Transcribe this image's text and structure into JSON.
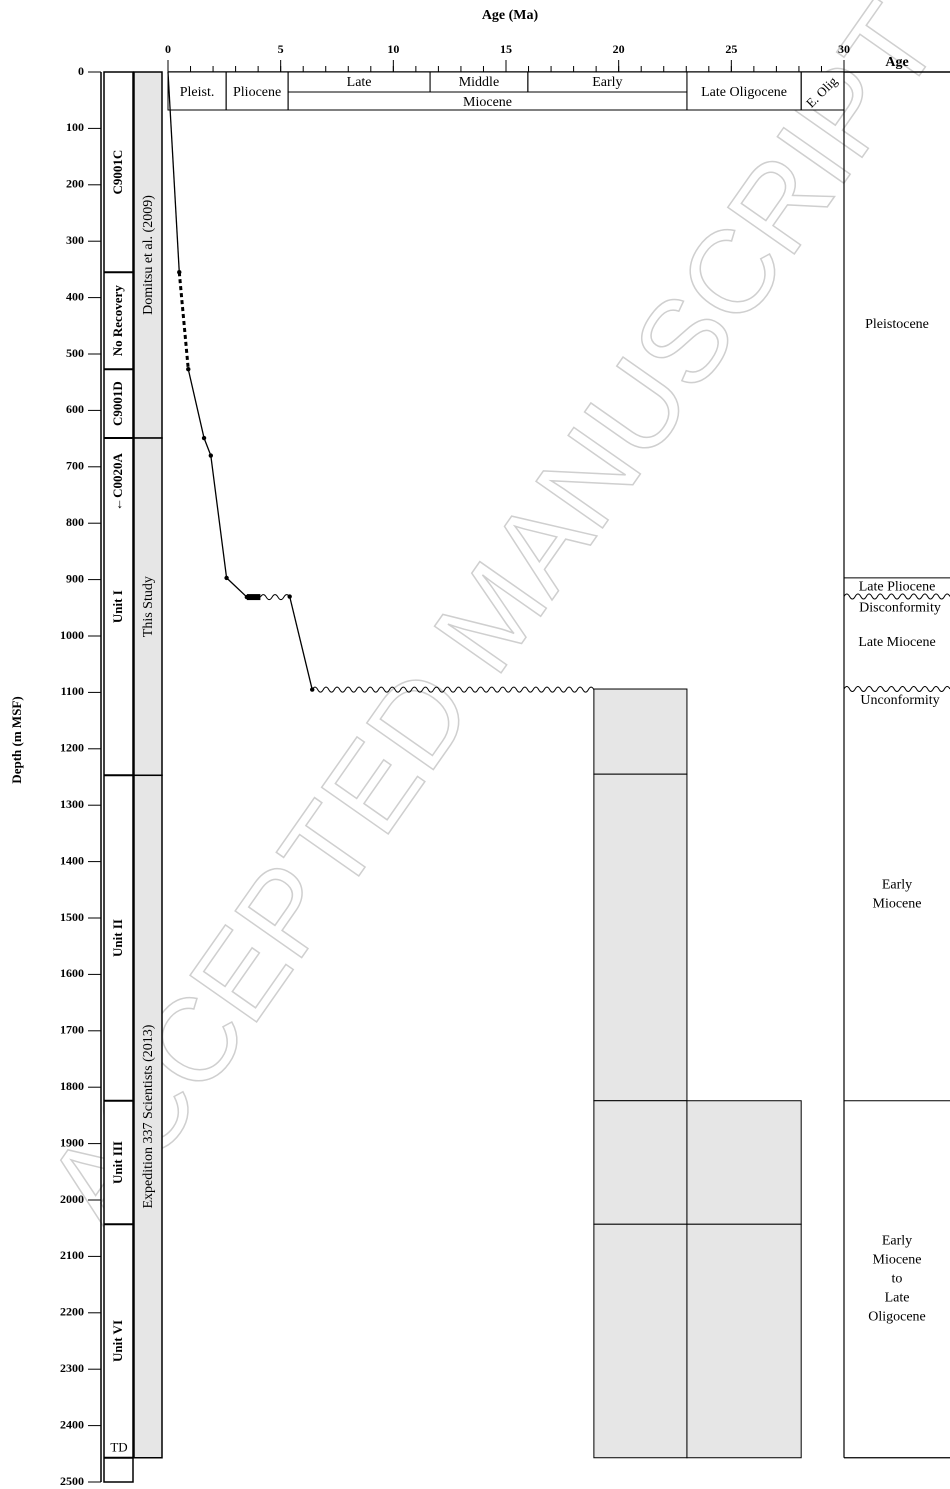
{
  "chart_data": {
    "type": "age-depth",
    "x_label": "Age (Ma)",
    "y_label": "Depth (m MSF)",
    "watermark": "ACCEPTED MANUSCRIPT",
    "xlim": [
      0,
      30
    ],
    "xticks": [
      0,
      5,
      10,
      15,
      20,
      25,
      30
    ],
    "x_minor_step": 1,
    "ylim": [
      0,
      2500
    ],
    "yticks": [
      0,
      100,
      200,
      300,
      400,
      500,
      600,
      700,
      800,
      900,
      1000,
      1100,
      1200,
      1300,
      1400,
      1500,
      1600,
      1700,
      1800,
      1900,
      2000,
      2100,
      2200,
      2300,
      2400,
      2500
    ],
    "series": [
      {
        "style": "solid",
        "x": [
          0,
          0.5
        ],
        "y": [
          0,
          355
        ]
      },
      {
        "style": "dashed",
        "x": [
          0.5,
          0.9
        ],
        "y": [
          355,
          527
        ]
      },
      {
        "style": "solid",
        "x": [
          0.9,
          1.6,
          1.9,
          2.6,
          3.5
        ],
        "y": [
          527,
          649,
          680,
          897,
          931
        ]
      },
      {
        "style": "thick",
        "x": [
          3.5,
          4.1
        ],
        "y": [
          931,
          931
        ]
      },
      {
        "style": "wavy",
        "x": [
          4.1,
          5.4
        ],
        "y": [
          931,
          930
        ]
      },
      {
        "style": "solid",
        "x": [
          5.4,
          6.4
        ],
        "y": [
          930,
          1095
        ]
      },
      {
        "style": "wavy",
        "x": [
          6.4,
          18.9
        ],
        "y": [
          1095,
          1095
        ]
      }
    ],
    "ranges": [
      {
        "x": [
          18.9,
          23.03
        ],
        "y": [
          1094,
          1245
        ]
      },
      {
        "x": [
          18.9,
          23.03
        ],
        "y": [
          1245,
          1824
        ]
      },
      {
        "x": [
          18.9,
          23.03
        ],
        "y": [
          1824,
          2043
        ]
      },
      {
        "x": [
          18.9,
          23.03
        ],
        "y": [
          2043,
          2457
        ]
      },
      {
        "x": [
          23.03,
          28.1
        ],
        "y": [
          1824,
          2043
        ]
      },
      {
        "x": [
          23.03,
          28.1
        ],
        "y": [
          2043,
          2457
        ]
      }
    ],
    "chronostratigraphy": {
      "epochs": [
        {
          "name": "Pleist.",
          "start": 0,
          "end": 2.58
        },
        {
          "name": "Pliocene",
          "start": 2.58,
          "end": 5.33
        },
        {
          "name": "Miocene",
          "start": 5.33,
          "end": 23.03
        },
        {
          "name": "Late Oligocene",
          "start": 23.03,
          "end": 28.1
        },
        {
          "name": "E. Olig",
          "start": 28.1,
          "end": 30
        }
      ],
      "subepochs": [
        {
          "name": "Late",
          "start": 5.33,
          "end": 11.63
        },
        {
          "name": "Middle",
          "start": 11.63,
          "end": 15.97
        },
        {
          "name": "Early",
          "start": 15.97,
          "end": 23.03
        }
      ]
    },
    "lithology_column": {
      "intervals": [
        {
          "label": "C9001C",
          "top": 0,
          "bottom": 355
        },
        {
          "label": "No Recovery",
          "top": 355,
          "bottom": 527
        },
        {
          "label": "C9001D",
          "top": 527,
          "bottom": 649
        },
        {
          "label": "Unit I",
          "top": 649,
          "bottom": 1247
        },
        {
          "label": "Unit II",
          "top": 1247,
          "bottom": 1824
        },
        {
          "label": "Unit III",
          "top": 1824,
          "bottom": 2043
        },
        {
          "label": "Unit VI",
          "top": 2043,
          "bottom": 2457
        }
      ],
      "annotations": [
        {
          "text": "←C0020A",
          "depth": 727
        },
        {
          "text": "TD",
          "depth": 2457
        }
      ]
    },
    "source_column": {
      "intervals": [
        {
          "label": "Domitsu et al. (2009)",
          "top": 0,
          "bottom": 649
        },
        {
          "label": "This Study",
          "top": 649,
          "bottom": 1247
        },
        {
          "label": "Expedition 337 Scientists (2013)",
          "top": 1247,
          "bottom": 2457
        }
      ]
    },
    "age_column": {
      "title": "Age",
      "zones": [
        {
          "lines": [
            "Pleistocene"
          ],
          "top": 0,
          "bottom": 897
        },
        {
          "lines": [
            "Late Pliocene"
          ],
          "top": 897,
          "bottom": 930
        },
        {
          "lines": [
            "Late Miocene"
          ],
          "top": 930,
          "bottom": 1094
        },
        {
          "lines": [
            "Early",
            "Miocene"
          ],
          "top": 1094,
          "bottom": 1824
        },
        {
          "lines": [
            "Early",
            "Miocene",
            "to",
            "Late",
            "Oligocene"
          ],
          "top": 1824,
          "bottom": 2457
        }
      ],
      "boundaries": [
        {
          "depth": 897,
          "style": "solid"
        },
        {
          "depth": 930,
          "style": "wavy",
          "label": "Disconformity"
        },
        {
          "depth": 1094,
          "style": "wavy",
          "label": "Unconformity"
        },
        {
          "depth": 1824,
          "style": "solid"
        }
      ]
    }
  }
}
